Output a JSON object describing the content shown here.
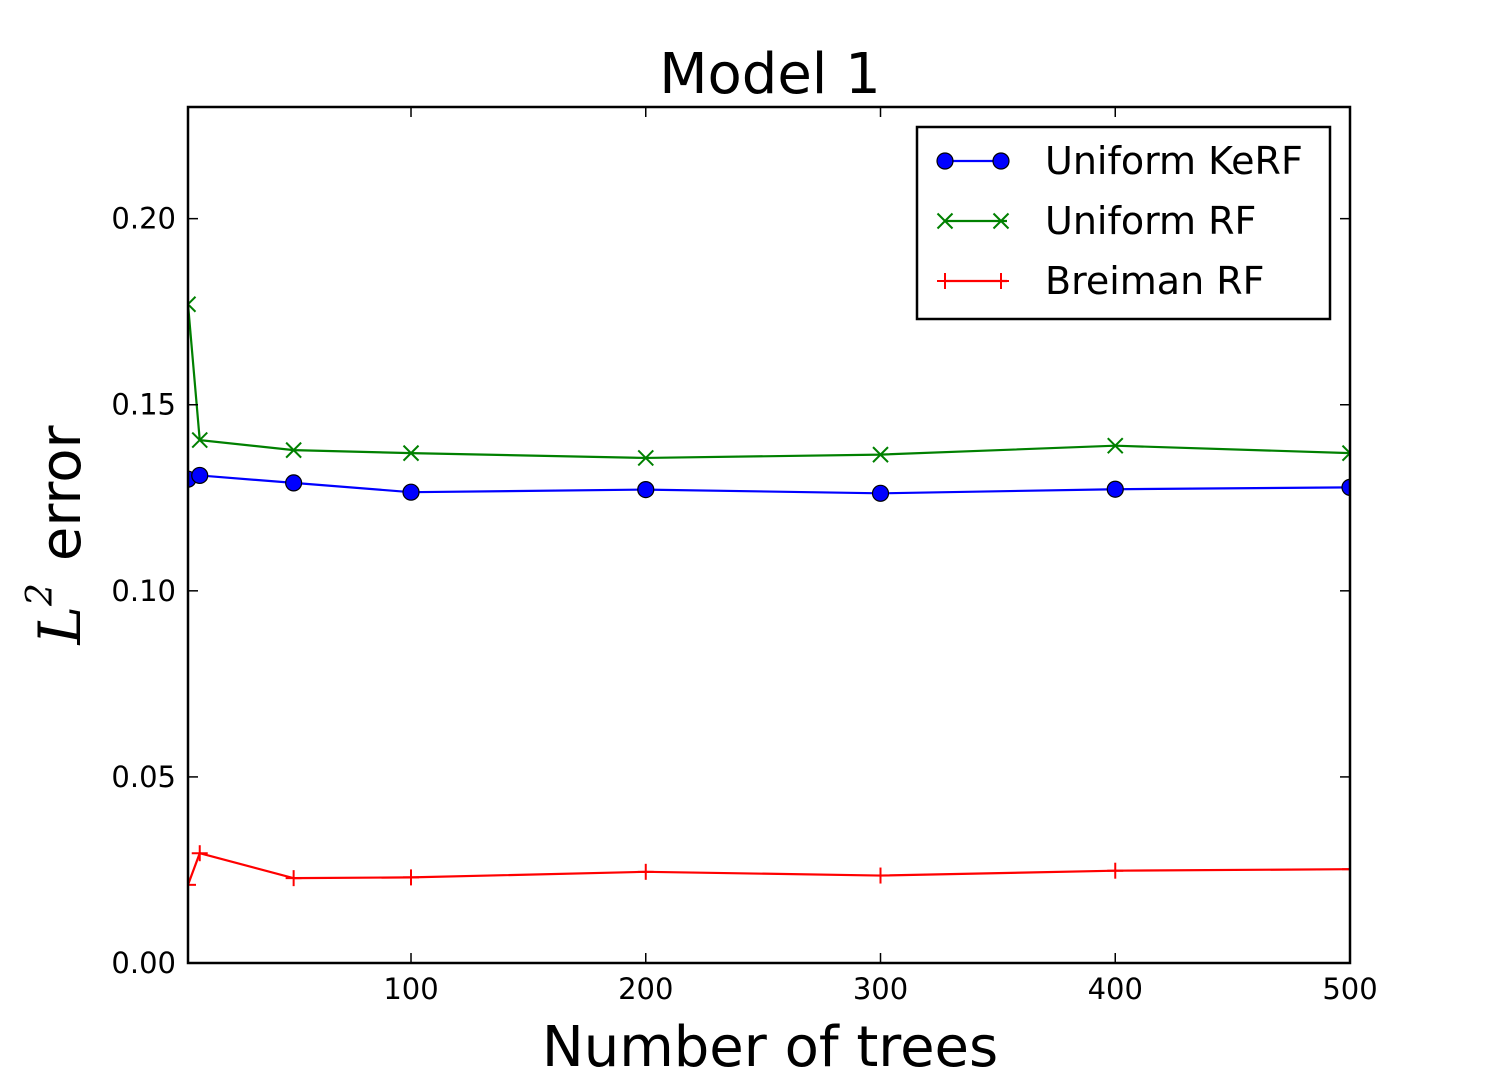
{
  "chart_data": {
    "type": "line",
    "title": "Model 1",
    "xlabel": "Number of trees",
    "ylabel": {
      "symbol": "L",
      "superscript": "2",
      "text": "error"
    },
    "xlim": [
      5,
      500
    ],
    "ylim": [
      0,
      0.23
    ],
    "x_ticks": [
      100,
      200,
      300,
      400,
      500
    ],
    "y_ticks": [
      0.0,
      0.05,
      0.1,
      0.15,
      0.2
    ],
    "y_tick_labels": [
      "0.00",
      "0.05",
      "0.10",
      "0.15",
      "0.20"
    ],
    "grid": false,
    "legend_position": "top-right",
    "x": [
      5,
      10,
      50,
      100,
      200,
      300,
      400,
      500
    ],
    "series": [
      {
        "name": "Uniform KeRF",
        "color": "#0000ff",
        "marker": "circle",
        "values": [
          0.13,
          0.131,
          0.129,
          0.1265,
          0.1272,
          0.1262,
          0.1273,
          0.1278
        ]
      },
      {
        "name": "Uniform RF",
        "color": "#008000",
        "marker": "x",
        "values": [
          0.177,
          0.1405,
          0.1378,
          0.137,
          0.1357,
          0.1366,
          0.139,
          0.137
        ]
      },
      {
        "name": "Breiman RF",
        "color": "#ff0000",
        "marker": "plus",
        "values": [
          0.021,
          0.0295,
          0.0228,
          0.023,
          0.0245,
          0.0235,
          0.0248,
          0.0252
        ]
      }
    ]
  }
}
